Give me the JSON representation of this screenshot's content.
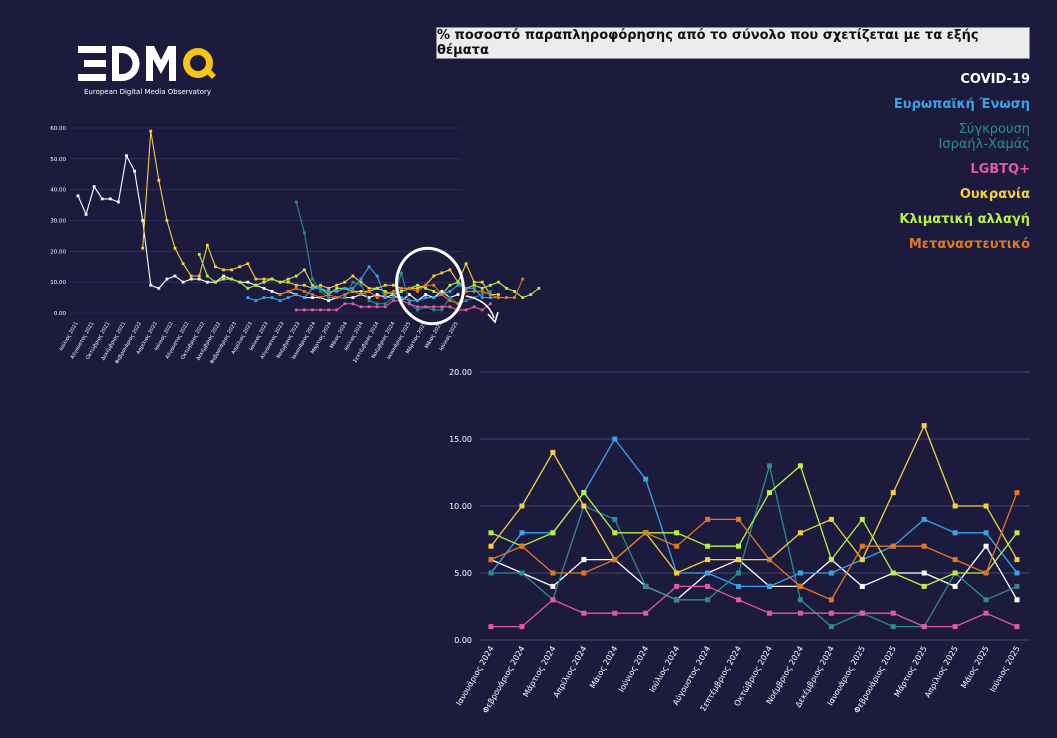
{
  "title": "% ποσοστό παραπληροφόρησης από το σύνολο που σχετίζεται με τα εξής θέματα",
  "logo": {
    "text": "EDMO",
    "subtitle": "European Digital Media Observatory"
  },
  "colors": {
    "background": "#1c1b3e",
    "covid": "#ffffff",
    "eu": "#3aa3e8",
    "israel": "#2a8c8c",
    "lgbtq": "#e05a9e",
    "ukraine": "#f5cf3e",
    "climate": "#b7f048",
    "migration": "#e07722"
  },
  "legend": [
    {
      "label": "COVID-19",
      "color": "#ffffff"
    },
    {
      "label": "Ευρωπαϊκή Ένωση",
      "color": "#3aa3e8"
    },
    {
      "label": "Σύγκρουση Ισραήλ-Χαμάς",
      "color": "#2a8c8c"
    },
    {
      "label": "LGBTQ+",
      "color": "#e05a9e"
    },
    {
      "label": "Ουκρανία",
      "color": "#f5cf3e"
    },
    {
      "label": "Κλιματική αλλαγή",
      "color": "#b7f048"
    },
    {
      "label": "Μεταναστευτικό",
      "color": "#e07722"
    }
  ],
  "chart_data": [
    {
      "type": "line",
      "ylim": [
        0,
        60
      ],
      "yticks": [
        "0.00",
        "10.00",
        "20.00",
        "30.00",
        "40.00",
        "50.00",
        "60.00"
      ],
      "xticks": [
        "Ιούλιος 2021",
        "Αύγουστος 2021",
        "Οκτώβριος 2021",
        "Δεκέμβριος 2021",
        "Φεβρουάριος 2022",
        "Απρίλιος 2022",
        "Ιούνιος 2022",
        "Αύγουστος 2022",
        "Οκτώβριος 2022",
        "Δεκέμβριος 2022",
        "Φεβρουάριος 2023",
        "Απρίλιος 2023",
        "Ιούνιος 2023",
        "Αύγουστος 2023",
        "Νοέμβριος 2023",
        "Ιανουάριος 2024",
        "Μάρτιος 2024",
        "Μάιος 2024",
        "Ιούλιος 2024",
        "Σεπτέμβριος 2024",
        "Νοέμβριος 2024",
        "Ιανουάριος 2025",
        "Μάρτιος 2025",
        "Μάιος 2025",
        "Ιούνιος 2025"
      ],
      "n_points": 48,
      "series": [
        {
          "key": "covid",
          "start": 0,
          "values": [
            38,
            32,
            41,
            37,
            37,
            36,
            51,
            46,
            30,
            9,
            8,
            11,
            12,
            10,
            11,
            11,
            10,
            10,
            12,
            11,
            10,
            10,
            9,
            8,
            7,
            6,
            7,
            6,
            5,
            5,
            5,
            4,
            5,
            5,
            5,
            6,
            5,
            6,
            5,
            6,
            4,
            6,
            4,
            6,
            5,
            7,
            5,
            6
          ]
        },
        {
          "key": "ukraine",
          "start": 8,
          "values": [
            21,
            59,
            43,
            30,
            21,
            16,
            12,
            12,
            22,
            15,
            14,
            14,
            15,
            16,
            11,
            11,
            11,
            10,
            10,
            9,
            9,
            8,
            9,
            8,
            9,
            10,
            12,
            10,
            8,
            8,
            9,
            9,
            8,
            8,
            8,
            9,
            12,
            13,
            14,
            10,
            16,
            10,
            10,
            6,
            6
          ]
        },
        {
          "key": "climate",
          "start": 15,
          "values": [
            19,
            12,
            10,
            11,
            11,
            10,
            8,
            9,
            10,
            11,
            10,
            11,
            12,
            14,
            9,
            8,
            6,
            8,
            8,
            7,
            7,
            7,
            8,
            7,
            6,
            7,
            8,
            9,
            8,
            7,
            6,
            9,
            10,
            8,
            9,
            8,
            9,
            10,
            8,
            7,
            5,
            6,
            8
          ]
        },
        {
          "key": "eu",
          "start": 21,
          "values": [
            5,
            4,
            5,
            5,
            4,
            5,
            6,
            5,
            8,
            8,
            7,
            7,
            8,
            8,
            11,
            15,
            12,
            5,
            5,
            5,
            4,
            4,
            5,
            5,
            6,
            7,
            9,
            8,
            8,
            5,
            5,
            5
          ]
        },
        {
          "key": "israel",
          "start": 27,
          "values": [
            36,
            26,
            11,
            7,
            5,
            5,
            5,
            10,
            9,
            4,
            3,
            3,
            5,
            13,
            3,
            1,
            2,
            1,
            1,
            5,
            3,
            4,
            5,
            6,
            7
          ]
        },
        {
          "key": "lgbtq",
          "start": 27,
          "values": [
            1,
            1,
            1,
            1,
            1,
            1,
            3,
            3,
            2,
            2,
            2,
            2,
            4,
            4,
            3,
            2,
            2,
            2,
            2,
            2,
            1,
            1,
            2,
            1,
            3
          ]
        },
        {
          "key": "migration",
          "start": 25,
          "values": [
            6,
            7,
            8,
            7,
            6,
            5,
            6,
            5,
            6,
            7,
            6,
            7,
            5,
            6,
            7,
            8,
            8,
            7,
            9,
            9,
            6,
            4,
            3,
            7,
            7,
            7,
            6,
            5,
            5,
            5,
            11
          ]
        }
      ]
    },
    {
      "type": "line",
      "ylim": [
        0,
        20
      ],
      "yticks": [
        "0.00",
        "5.00",
        "10.00",
        "15.00",
        "20.00"
      ],
      "categories": [
        "Ιανουάριος 2024",
        "Φεβρουάριος 2024",
        "Μάρτιος 2024",
        "Απρίλιος 2024",
        "Μάιος 2024",
        "Ιούνιος 2024",
        "Ιούλιος 2024",
        "Αύγουστος 2024",
        "Σεπτέμβριος 2024",
        "Οκτώβριος 2024",
        "Νοέμβριος 2024",
        "Δεκέμβριος 2024",
        "Ιανουάριος 2025",
        "Φεβρουάριος 2025",
        "Μάρτιος 2025",
        "Απρίλιος 2025",
        "Μάιος 2025",
        "Ιούνιος 2025"
      ],
      "series": [
        {
          "name": "COVID-19",
          "key": "covid",
          "values": [
            6,
            5,
            4,
            6,
            6,
            4,
            3,
            5,
            6,
            4,
            4,
            6,
            4,
            5,
            5,
            4,
            7,
            3
          ]
        },
        {
          "name": "Ευρωπαϊκή Ένωση",
          "key": "eu",
          "values": [
            5,
            8,
            8,
            11,
            15,
            12,
            5,
            5,
            4,
            4,
            5,
            5,
            6,
            7,
            9,
            8,
            8,
            5
          ]
        },
        {
          "name": "Σύγκρουση Ισραήλ-Χαμάς",
          "key": "israel",
          "values": [
            5,
            5,
            3,
            10,
            9,
            4,
            3,
            3,
            5,
            13,
            3,
            1,
            2,
            1,
            1,
            5,
            3,
            4
          ]
        },
        {
          "name": "LGBTQ+",
          "key": "lgbtq",
          "values": [
            1,
            1,
            3,
            2,
            2,
            2,
            4,
            4,
            3,
            2,
            2,
            2,
            2,
            2,
            1,
            1,
            2,
            1
          ]
        },
        {
          "name": "Ουκρανία",
          "key": "ukraine",
          "values": [
            7,
            10,
            14,
            10,
            6,
            8,
            5,
            6,
            6,
            6,
            8,
            9,
            6,
            11,
            16,
            10,
            10,
            6
          ]
        },
        {
          "name": "Κλιματική αλλαγή",
          "key": "climate",
          "values": [
            8,
            7,
            8,
            11,
            8,
            8,
            8,
            7,
            7,
            11,
            13,
            6,
            9,
            5,
            4,
            5,
            5,
            8
          ]
        },
        {
          "name": "Μεταναστευτικό",
          "key": "migration",
          "values": [
            6,
            7,
            5,
            5,
            6,
            8,
            7,
            9,
            9,
            6,
            4,
            3,
            7,
            7,
            7,
            6,
            5,
            11
          ]
        }
      ]
    }
  ]
}
